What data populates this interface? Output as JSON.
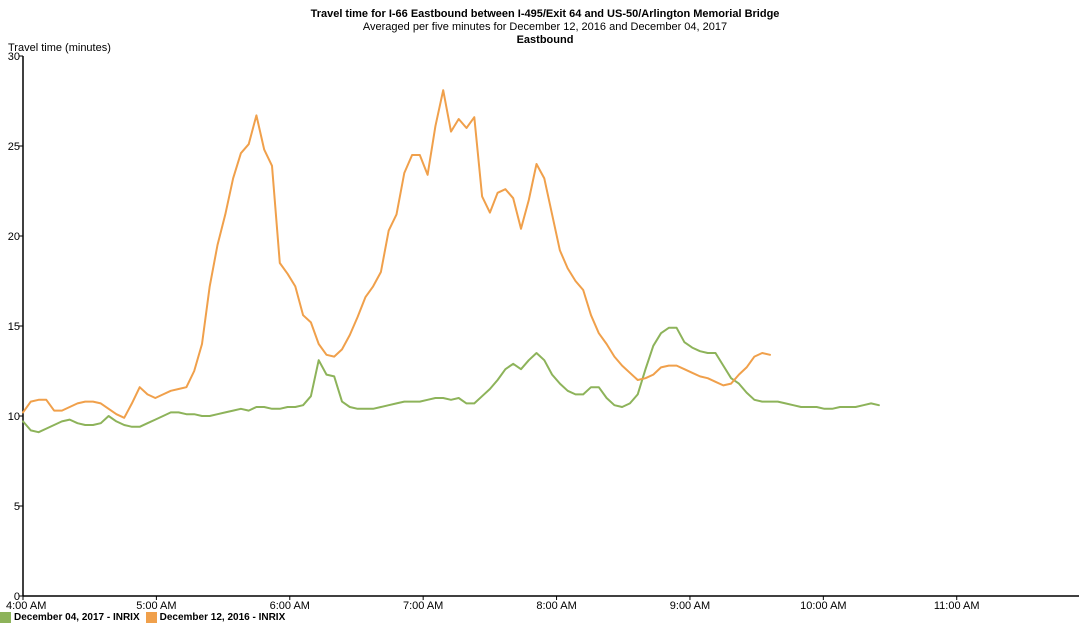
{
  "colors": {
    "series_green": "#8db35a",
    "series_orange": "#f0a04b",
    "axis": "#000000"
  },
  "chart_data": {
    "type": "line",
    "title": "Travel time for I-66  Eastbound between I-495/Exit 64 and US-50/Arlington Memorial Bridge",
    "subtitle": "Averaged per five minutes for December 12, 2016 and December 04, 2017",
    "subtitle2": "Eastbound",
    "xlabel": "",
    "ylabel": "Travel time (minutes)",
    "ylim": [
      0,
      30
    ],
    "yticks": [
      0,
      5,
      10,
      15,
      20,
      25,
      30
    ],
    "xlim_minutes": [
      240,
      715
    ],
    "xticks": [
      {
        "minutes": 240,
        "label": "4:00 AM"
      },
      {
        "minutes": 300,
        "label": "5:00 AM"
      },
      {
        "minutes": 360,
        "label": "6:00 AM"
      },
      {
        "minutes": 420,
        "label": "7:00 AM"
      },
      {
        "minutes": 480,
        "label": "8:00 AM"
      },
      {
        "minutes": 540,
        "label": "9:00 AM"
      },
      {
        "minutes": 600,
        "label": "10:00 AM"
      },
      {
        "minutes": 660,
        "label": "11:00 AM"
      }
    ],
    "grid": false,
    "legend_position": "bottom-left",
    "x_interval_minutes": 3.5,
    "x_start_minutes": 240,
    "series": [
      {
        "name": "December 04, 2017 - INRIX",
        "color": "#8db35a",
        "values": [
          9.7,
          9.2,
          9.1,
          9.3,
          9.5,
          9.7,
          9.8,
          9.6,
          9.5,
          9.5,
          9.6,
          10.0,
          9.7,
          9.5,
          9.4,
          9.4,
          9.6,
          9.8,
          10.0,
          10.2,
          10.2,
          10.1,
          10.1,
          10.0,
          10.0,
          10.1,
          10.2,
          10.3,
          10.4,
          10.3,
          10.5,
          10.5,
          10.4,
          10.4,
          10.5,
          10.5,
          10.6,
          11.1,
          13.1,
          12.3,
          12.2,
          10.8,
          10.5,
          10.4,
          10.4,
          10.4,
          10.5,
          10.6,
          10.7,
          10.8,
          10.8,
          10.8,
          10.9,
          11.0,
          11.0,
          10.9,
          11.0,
          10.7,
          10.7,
          11.1,
          11.5,
          12.0,
          12.6,
          12.9,
          12.6,
          13.1,
          13.5,
          13.1,
          12.3,
          11.8,
          11.4,
          11.2,
          11.2,
          11.6,
          11.6,
          11.0,
          10.6,
          10.5,
          10.7,
          11.2,
          12.6,
          13.9,
          14.6,
          14.9,
          14.9,
          14.1,
          13.8,
          13.6,
          13.5,
          13.5,
          12.8,
          12.1,
          11.8,
          11.3,
          10.9,
          10.8,
          10.8,
          10.8,
          10.7,
          10.6,
          10.5,
          10.5,
          10.5,
          10.4,
          10.4,
          10.5,
          10.5,
          10.5,
          10.6,
          10.7,
          10.6
        ]
      },
      {
        "name": "December 12, 2016 - INRIX",
        "color": "#f0a04b",
        "values": [
          10.2,
          10.8,
          10.9,
          10.9,
          10.3,
          10.3,
          10.5,
          10.7,
          10.8,
          10.8,
          10.7,
          10.4,
          10.1,
          9.9,
          10.7,
          11.6,
          11.2,
          11.0,
          11.2,
          11.4,
          11.5,
          11.6,
          12.5,
          14.0,
          17.2,
          19.5,
          21.2,
          23.2,
          24.6,
          25.1,
          26.7,
          24.8,
          23.9,
          18.5,
          17.9,
          17.2,
          15.6,
          15.2,
          14.0,
          13.4,
          13.3,
          13.7,
          14.5,
          15.5,
          16.6,
          17.2,
          18.0,
          20.3,
          21.2,
          23.5,
          24.5,
          24.5,
          23.4,
          26.1,
          28.1,
          25.8,
          26.5,
          26.0,
          26.6,
          22.2,
          21.3,
          22.4,
          22.6,
          22.1,
          20.4,
          22.0,
          24.0,
          23.2,
          21.2,
          19.2,
          18.2,
          17.5,
          17.0,
          15.6,
          14.6,
          14.0,
          13.3,
          12.8,
          12.4,
          12.0,
          12.1,
          12.3,
          12.7,
          12.8,
          12.8,
          12.6,
          12.4,
          12.2,
          12.1,
          11.9,
          11.7,
          11.8,
          12.3,
          12.7,
          13.3,
          13.5,
          13.4
        ]
      }
    ]
  }
}
